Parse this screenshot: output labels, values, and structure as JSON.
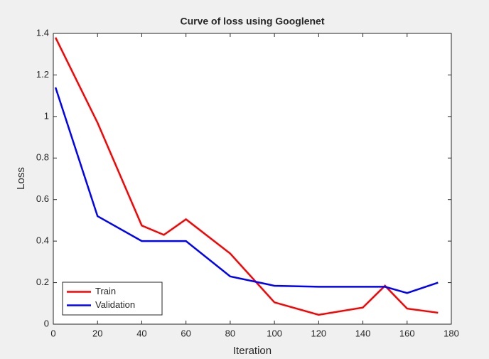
{
  "chart_data": {
    "type": "line",
    "title": "Curve of loss using Googlenet",
    "xlabel": "Iteration",
    "ylabel": "Loss",
    "series": [
      {
        "name": "Train",
        "color": "#ff0000",
        "x": [
          1,
          20,
          40,
          50,
          60,
          80,
          100,
          120,
          140,
          150,
          160,
          174
        ],
        "values": [
          1.38,
          0.97,
          0.475,
          0.43,
          0.505,
          0.34,
          0.105,
          0.045,
          0.08,
          0.185,
          0.075,
          0.055
        ]
      },
      {
        "name": "Validation",
        "color": "#0000ff",
        "x": [
          1,
          20,
          40,
          60,
          80,
          100,
          120,
          140,
          150,
          160,
          174
        ],
        "values": [
          1.14,
          0.52,
          0.4,
          0.4,
          0.23,
          0.185,
          0.18,
          0.18,
          0.18,
          0.15,
          0.2
        ]
      }
    ],
    "xlim": [
      0,
      180
    ],
    "xticks": [
      0,
      20,
      40,
      60,
      80,
      100,
      120,
      140,
      160,
      180
    ],
    "ylim": [
      0,
      1.4
    ],
    "yticks": [
      0,
      0.2,
      0.4,
      0.6,
      0.8,
      1,
      1.2,
      1.4
    ],
    "grid": false,
    "legend": "lower left"
  }
}
